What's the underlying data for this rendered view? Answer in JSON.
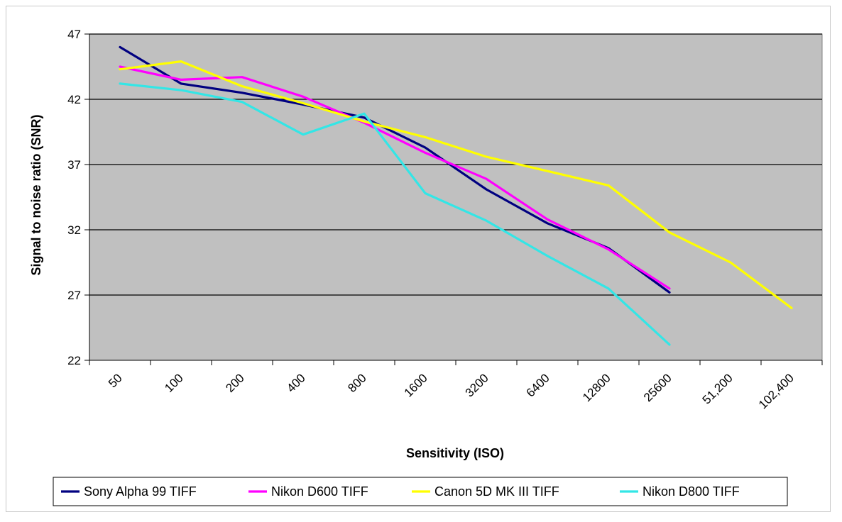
{
  "chart_data": {
    "type": "line",
    "title": "",
    "xlabel": "Sensitivity (ISO)",
    "ylabel": "Signal to noise ratio (SNR)",
    "ylim": [
      22,
      47
    ],
    "yticks": [
      "22",
      "27",
      "32",
      "37",
      "42",
      "47"
    ],
    "categories": [
      "50",
      "100",
      "200",
      "400",
      "800",
      "1600",
      "3200",
      "6400",
      "12800",
      "25600",
      "51,200",
      "102,400"
    ],
    "grid": "horizontal major gridlines",
    "background_color": "#c0c0c0",
    "legend_position": "bottom",
    "series": [
      {
        "name": "Sony Alpha 99 TIFF",
        "color": "#000080",
        "points": [
          [
            50,
            46.0
          ],
          [
            100,
            43.2
          ],
          [
            200,
            42.5
          ],
          [
            400,
            41.6
          ],
          [
            800,
            40.6
          ],
          [
            1600,
            38.3
          ],
          [
            3200,
            35.1
          ],
          [
            6400,
            32.5
          ],
          [
            12800,
            30.6
          ],
          [
            25600,
            27.2
          ]
        ]
      },
      {
        "name": "Nikon D600 TIFF",
        "color": "#ff00ff",
        "points": [
          [
            50,
            44.5
          ],
          [
            100,
            43.5
          ],
          [
            200,
            43.7
          ],
          [
            400,
            42.2
          ],
          [
            800,
            40.2
          ],
          [
            1600,
            37.9
          ],
          [
            3200,
            35.9
          ],
          [
            6400,
            32.8
          ],
          [
            12800,
            30.5
          ],
          [
            25600,
            27.5
          ]
        ]
      },
      {
        "name": "Canon 5D MK III TIFF",
        "color": "#ffff00",
        "points": [
          [
            50,
            44.3
          ],
          [
            100,
            44.9
          ],
          [
            200,
            43.0
          ],
          [
            400,
            41.7
          ],
          [
            800,
            40.3
          ],
          [
            1600,
            39.1
          ],
          [
            3200,
            37.6
          ],
          [
            6400,
            36.5
          ],
          [
            12800,
            35.4
          ],
          [
            25600,
            31.8
          ],
          [
            51200,
            29.5
          ],
          [
            102400,
            26.0
          ]
        ]
      },
      {
        "name": "Nikon D800 TIFF",
        "color": "#33e6e6",
        "points": [
          [
            50,
            43.2
          ],
          [
            100,
            42.7
          ],
          [
            200,
            41.8
          ],
          [
            400,
            39.3
          ],
          [
            800,
            40.9
          ],
          [
            1600,
            34.8
          ],
          [
            3200,
            32.7
          ],
          [
            6400,
            30.0
          ],
          [
            12800,
            27.5
          ],
          [
            25600,
            23.2
          ]
        ]
      }
    ]
  }
}
